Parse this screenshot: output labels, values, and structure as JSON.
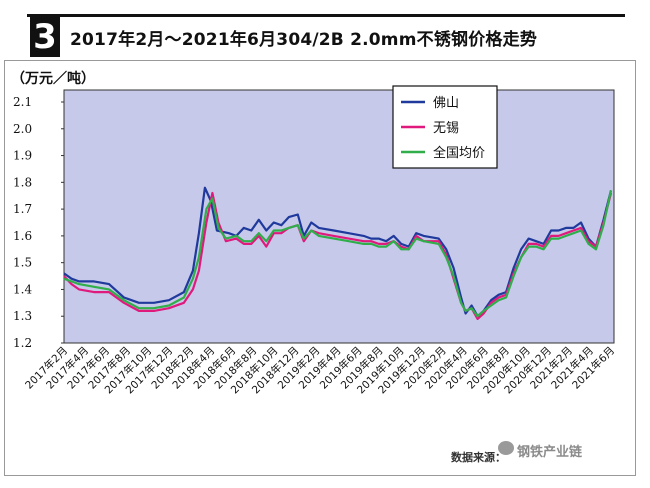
{
  "header": {
    "number": "3",
    "title": "2017年2月～2021年6月304/2B 2.0mm不锈钢价格走势"
  },
  "footer": {
    "source": "数据来源：",
    "watermark": "钢铁产业链"
  },
  "colors": {
    "foshan": "#1f3a9c",
    "wuxi": "#e0197d",
    "national": "#2fae4a",
    "plot_bg": "#c6c9ea"
  },
  "chart_data": {
    "type": "line",
    "ylabel": "（万元／吨）",
    "ylim": [
      1.2,
      2.1
    ],
    "yticks": [
      "1.2",
      "1.3",
      "1.4",
      "1.5",
      "1.6",
      "1.7",
      "1.8",
      "1.9",
      "2.0",
      "2.1"
    ],
    "grid": false,
    "legend_position": "top-right",
    "x_tick_labels": [
      "2017年2月",
      "2017年4月",
      "2017年6月",
      "2017年8月",
      "2017年10月",
      "2017年12月",
      "2018年2月",
      "2018年4月",
      "2018年6月",
      "2018年8月",
      "2018年10月",
      "2018年12月",
      "2019年2月",
      "2019年4月",
      "2019年6月",
      "2019年8月",
      "2019年10月",
      "2019年12月",
      "2020年2月",
      "2020年4月",
      "2020年6月",
      "2020年8月",
      "2020年10月",
      "2020年12月",
      "2021年2月",
      "2021年4月",
      "2021年6月"
    ],
    "series": [
      {
        "name": "佛山",
        "color": "#1f3a9c",
        "points": [
          [
            0,
            1.46
          ],
          [
            0.5,
            1.44
          ],
          [
            1,
            1.43
          ],
          [
            2,
            1.43
          ],
          [
            3,
            1.42
          ],
          [
            4,
            1.37
          ],
          [
            5,
            1.35
          ],
          [
            6,
            1.35
          ],
          [
            7,
            1.36
          ],
          [
            8,
            1.39
          ],
          [
            8.6,
            1.47
          ],
          [
            9,
            1.61
          ],
          [
            9.4,
            1.78
          ],
          [
            9.8,
            1.73
          ],
          [
            10.2,
            1.62
          ],
          [
            11,
            1.61
          ],
          [
            11.5,
            1.6
          ],
          [
            12,
            1.63
          ],
          [
            12.5,
            1.62
          ],
          [
            13,
            1.66
          ],
          [
            13.5,
            1.62
          ],
          [
            14,
            1.65
          ],
          [
            14.5,
            1.64
          ],
          [
            15,
            1.67
          ],
          [
            15.6,
            1.68
          ],
          [
            16,
            1.6
          ],
          [
            16.5,
            1.65
          ],
          [
            17,
            1.63
          ],
          [
            18,
            1.62
          ],
          [
            19,
            1.61
          ],
          [
            20,
            1.6
          ],
          [
            20.5,
            1.59
          ],
          [
            21,
            1.59
          ],
          [
            21.5,
            1.58
          ],
          [
            22,
            1.6
          ],
          [
            22.5,
            1.57
          ],
          [
            23,
            1.56
          ],
          [
            23.5,
            1.61
          ],
          [
            24,
            1.6
          ],
          [
            25,
            1.59
          ],
          [
            25.5,
            1.55
          ],
          [
            26,
            1.48
          ],
          [
            26.5,
            1.37
          ],
          [
            26.8,
            1.31
          ],
          [
            27.2,
            1.34
          ],
          [
            27.6,
            1.3
          ],
          [
            28,
            1.32
          ],
          [
            28.5,
            1.36
          ],
          [
            29,
            1.38
          ],
          [
            29.5,
            1.39
          ],
          [
            30,
            1.48
          ],
          [
            30.5,
            1.55
          ],
          [
            31,
            1.59
          ],
          [
            31.5,
            1.58
          ],
          [
            32,
            1.57
          ],
          [
            32.5,
            1.62
          ],
          [
            33,
            1.62
          ],
          [
            33.5,
            1.63
          ],
          [
            34,
            1.63
          ],
          [
            34.5,
            1.65
          ],
          [
            35,
            1.59
          ],
          [
            35.5,
            1.56
          ],
          [
            36,
            1.66
          ],
          [
            36.5,
            1.77
          ]
        ]
      },
      {
        "name": "无锡",
        "color": "#e0197d",
        "points": [
          [
            0,
            1.45
          ],
          [
            0.5,
            1.42
          ],
          [
            1,
            1.4
          ],
          [
            2,
            1.39
          ],
          [
            3,
            1.39
          ],
          [
            4,
            1.35
          ],
          [
            5,
            1.32
          ],
          [
            6,
            1.32
          ],
          [
            7,
            1.33
          ],
          [
            8,
            1.35
          ],
          [
            8.6,
            1.4
          ],
          [
            9,
            1.47
          ],
          [
            9.5,
            1.65
          ],
          [
            9.9,
            1.76
          ],
          [
            10.3,
            1.65
          ],
          [
            10.8,
            1.58
          ],
          [
            11.5,
            1.59
          ],
          [
            12,
            1.57
          ],
          [
            12.5,
            1.57
          ],
          [
            13,
            1.6
          ],
          [
            13.5,
            1.56
          ],
          [
            14,
            1.61
          ],
          [
            14.5,
            1.61
          ],
          [
            15,
            1.63
          ],
          [
            15.6,
            1.64
          ],
          [
            16,
            1.58
          ],
          [
            16.5,
            1.62
          ],
          [
            17,
            1.61
          ],
          [
            18,
            1.6
          ],
          [
            19,
            1.59
          ],
          [
            20,
            1.58
          ],
          [
            20.5,
            1.58
          ],
          [
            21,
            1.57
          ],
          [
            21.5,
            1.57
          ],
          [
            22,
            1.58
          ],
          [
            22.5,
            1.56
          ],
          [
            23,
            1.55
          ],
          [
            23.5,
            1.6
          ],
          [
            24,
            1.58
          ],
          [
            25,
            1.58
          ],
          [
            25.5,
            1.53
          ],
          [
            26,
            1.44
          ],
          [
            26.5,
            1.35
          ],
          [
            26.8,
            1.32
          ],
          [
            27.2,
            1.33
          ],
          [
            27.6,
            1.29
          ],
          [
            28,
            1.31
          ],
          [
            28.5,
            1.35
          ],
          [
            29,
            1.37
          ],
          [
            29.5,
            1.38
          ],
          [
            30,
            1.46
          ],
          [
            30.5,
            1.52
          ],
          [
            31,
            1.57
          ],
          [
            31.5,
            1.57
          ],
          [
            32,
            1.56
          ],
          [
            32.5,
            1.6
          ],
          [
            33,
            1.6
          ],
          [
            33.5,
            1.61
          ],
          [
            34,
            1.62
          ],
          [
            34.5,
            1.63
          ],
          [
            35,
            1.58
          ],
          [
            35.5,
            1.56
          ],
          [
            36,
            1.65
          ],
          [
            36.5,
            1.76
          ]
        ]
      },
      {
        "name": "全国均价",
        "color": "#2fae4a",
        "points": [
          [
            0,
            1.44
          ],
          [
            0.5,
            1.43
          ],
          [
            1,
            1.42
          ],
          [
            2,
            1.41
          ],
          [
            3,
            1.4
          ],
          [
            4,
            1.36
          ],
          [
            5,
            1.33
          ],
          [
            6,
            1.33
          ],
          [
            7,
            1.34
          ],
          [
            8,
            1.37
          ],
          [
            8.6,
            1.44
          ],
          [
            9,
            1.52
          ],
          [
            9.5,
            1.7
          ],
          [
            9.9,
            1.74
          ],
          [
            10.3,
            1.63
          ],
          [
            10.8,
            1.59
          ],
          [
            11.5,
            1.6
          ],
          [
            12,
            1.58
          ],
          [
            12.5,
            1.58
          ],
          [
            13,
            1.61
          ],
          [
            13.5,
            1.58
          ],
          [
            14,
            1.62
          ],
          [
            14.5,
            1.62
          ],
          [
            15,
            1.63
          ],
          [
            15.6,
            1.64
          ],
          [
            16,
            1.59
          ],
          [
            16.5,
            1.62
          ],
          [
            17,
            1.6
          ],
          [
            18,
            1.59
          ],
          [
            19,
            1.58
          ],
          [
            20,
            1.57
          ],
          [
            20.5,
            1.57
          ],
          [
            21,
            1.56
          ],
          [
            21.5,
            1.56
          ],
          [
            22,
            1.58
          ],
          [
            22.5,
            1.55
          ],
          [
            23,
            1.55
          ],
          [
            23.5,
            1.59
          ],
          [
            24,
            1.58
          ],
          [
            25,
            1.57
          ],
          [
            25.5,
            1.52
          ],
          [
            26,
            1.45
          ],
          [
            26.5,
            1.35
          ],
          [
            26.8,
            1.32
          ],
          [
            27.2,
            1.33
          ],
          [
            27.6,
            1.3
          ],
          [
            28,
            1.32
          ],
          [
            28.5,
            1.34
          ],
          [
            29,
            1.36
          ],
          [
            29.5,
            1.37
          ],
          [
            30,
            1.45
          ],
          [
            30.5,
            1.52
          ],
          [
            31,
            1.56
          ],
          [
            31.5,
            1.56
          ],
          [
            32,
            1.55
          ],
          [
            32.5,
            1.59
          ],
          [
            33,
            1.59
          ],
          [
            33.5,
            1.6
          ],
          [
            34,
            1.61
          ],
          [
            34.5,
            1.62
          ],
          [
            35,
            1.57
          ],
          [
            35.5,
            1.55
          ],
          [
            36,
            1.64
          ],
          [
            36.5,
            1.77
          ]
        ]
      }
    ]
  }
}
